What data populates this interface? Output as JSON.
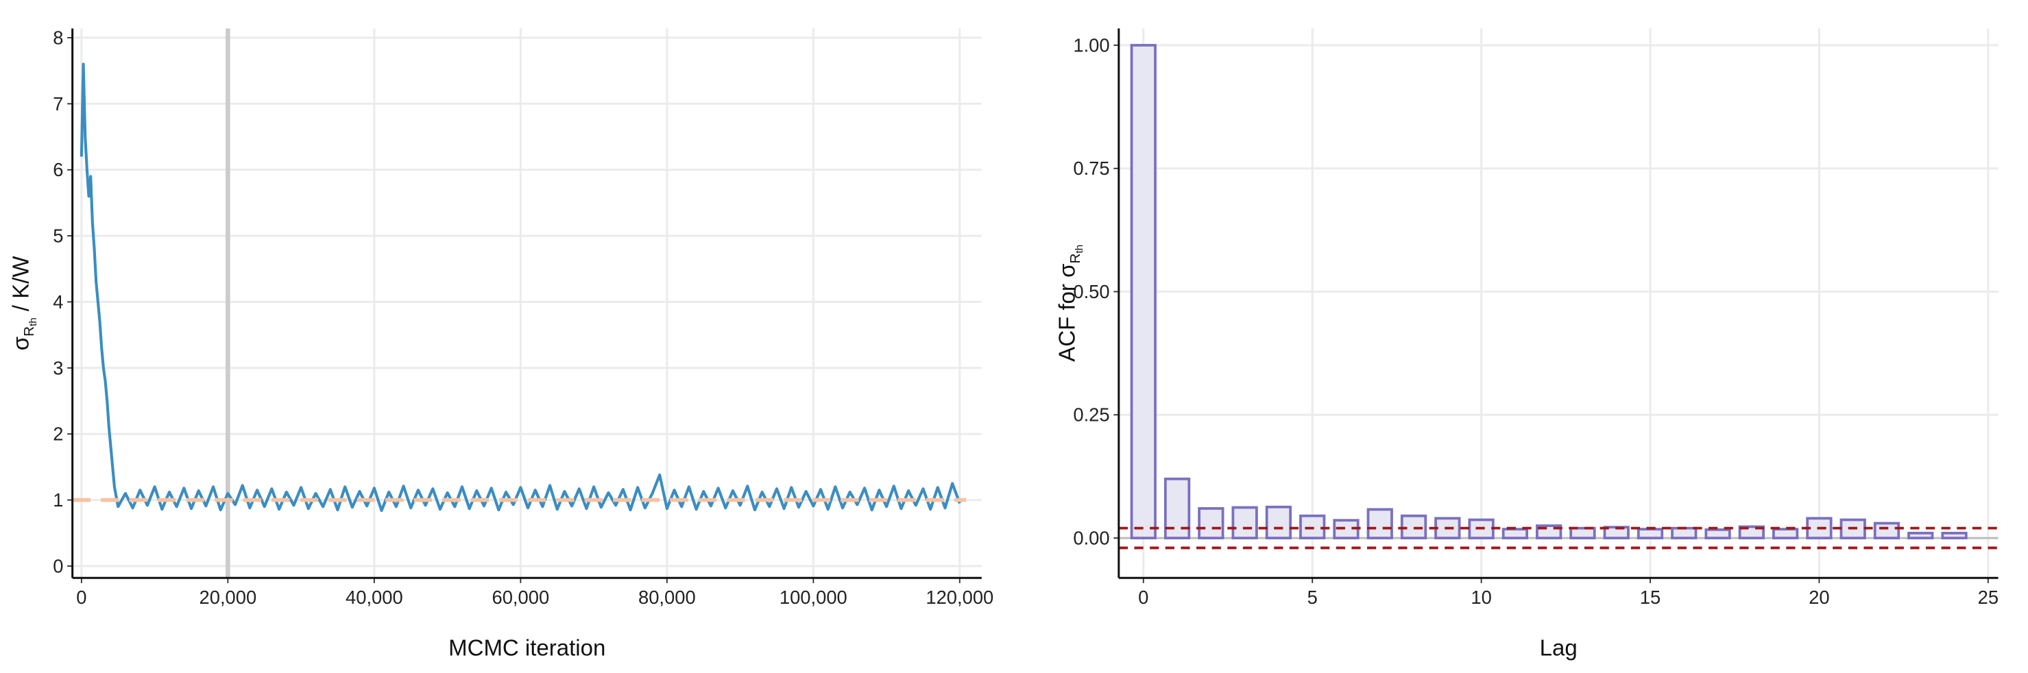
{
  "chart_data": [
    {
      "type": "line",
      "xlabel": "MCMC iteration",
      "ylabel": {
        "main": "σ",
        "sub": "R",
        "subsub": "th",
        "after": " / K/W"
      },
      "color": "#3a8dc2",
      "grid": true,
      "xlim": [
        -1240,
        123000
      ],
      "ylim": [
        -0.18,
        8.14
      ],
      "xticks": [
        0,
        {
          "value": 20000,
          "label": "20,000"
        },
        {
          "value": 40000,
          "label": "40,000"
        },
        {
          "value": 60000,
          "label": "60,000"
        },
        {
          "value": 80000,
          "label": "80,000"
        },
        {
          "value": 100000,
          "label": "100,000"
        },
        {
          "value": 120000,
          "label": "120,000"
        }
      ],
      "yticks": [
        0,
        1,
        2,
        3,
        4,
        5,
        6,
        7,
        8
      ],
      "vline": 20000,
      "vline_color": "#cccccc",
      "hline": 1,
      "hline_color": "#f6c3a3",
      "x": [
        0,
        250,
        500,
        750,
        1000,
        1250,
        1500,
        1750,
        2000,
        2250,
        2500,
        2750,
        3000,
        3250,
        3500,
        3750,
        4000,
        4250,
        4500,
        4750,
        5000,
        6000,
        7000,
        8000,
        9000,
        10000,
        11000,
        12000,
        13000,
        14000,
        15000,
        16000,
        17000,
        18000,
        19000,
        20000,
        21000,
        22000,
        23000,
        24000,
        25000,
        26000,
        27000,
        28000,
        29000,
        30000,
        31000,
        32000,
        33000,
        34000,
        35000,
        36000,
        37000,
        38000,
        39000,
        40000,
        41000,
        42000,
        43000,
        44000,
        45000,
        46000,
        47000,
        48000,
        49000,
        50000,
        51000,
        52000,
        53000,
        54000,
        55000,
        56000,
        57000,
        58000,
        59000,
        60000,
        61000,
        62000,
        63000,
        64000,
        65000,
        66000,
        67000,
        68000,
        69000,
        70000,
        71000,
        72000,
        73000,
        74000,
        75000,
        76000,
        77000,
        78000,
        79000,
        80000,
        81000,
        82000,
        83000,
        84000,
        85000,
        86000,
        87000,
        88000,
        89000,
        90000,
        91000,
        92000,
        93000,
        94000,
        95000,
        96000,
        97000,
        98000,
        99000,
        100000,
        101000,
        102000,
        103000,
        104000,
        105000,
        106000,
        107000,
        108000,
        109000,
        110000,
        111000,
        112000,
        113000,
        114000,
        115000,
        116000,
        117000,
        118000,
        119000,
        120000
      ],
      "values": [
        6.2,
        7.6,
        6.5,
        6.0,
        5.6,
        5.9,
        5.2,
        4.8,
        4.3,
        4.0,
        3.7,
        3.3,
        3.0,
        2.8,
        2.5,
        2.1,
        1.8,
        1.5,
        1.2,
        1.05,
        0.9,
        1.1,
        0.88,
        1.15,
        0.92,
        1.2,
        0.86,
        1.12,
        0.9,
        1.18,
        0.87,
        1.14,
        0.91,
        1.2,
        0.85,
        1.1,
        0.93,
        1.22,
        0.88,
        1.15,
        0.9,
        1.17,
        0.86,
        1.12,
        0.92,
        1.19,
        0.87,
        1.1,
        0.9,
        1.16,
        0.85,
        1.2,
        0.89,
        1.13,
        0.91,
        1.18,
        0.84,
        1.12,
        0.9,
        1.21,
        0.88,
        1.15,
        0.92,
        1.17,
        0.86,
        1.11,
        0.9,
        1.2,
        0.87,
        1.14,
        0.91,
        1.18,
        0.85,
        1.12,
        0.93,
        1.19,
        0.88,
        1.15,
        0.9,
        1.22,
        0.86,
        1.13,
        0.91,
        1.17,
        0.87,
        1.2,
        0.89,
        1.11,
        0.92,
        1.16,
        0.85,
        1.19,
        0.88,
        1.1,
        1.38,
        0.87,
        1.15,
        0.9,
        1.2,
        0.86,
        1.13,
        0.91,
        1.18,
        0.88,
        1.14,
        0.92,
        1.21,
        0.85,
        1.12,
        0.9,
        1.17,
        0.87,
        1.19,
        0.89,
        1.13,
        0.91,
        1.16,
        0.86,
        1.2,
        0.88,
        1.12,
        0.93,
        1.18,
        0.85,
        1.15,
        0.9,
        1.21,
        0.87,
        1.14,
        0.92,
        1.17,
        0.86,
        1.19,
        0.88,
        1.25,
        0.95
      ]
    },
    {
      "type": "bar",
      "xlabel": "Lag",
      "ylabel": {
        "main": "ACF for σ",
        "sub": "R",
        "subsub": "th"
      },
      "color": "#e7e6f3",
      "edge_color": "#7a70bf",
      "grid": true,
      "xlim": [
        -0.73,
        25.3
      ],
      "ylim": [
        -0.081,
        1.034
      ],
      "xticks": [
        0,
        5,
        10,
        15,
        20,
        25
      ],
      "yticks": [
        {
          "value": 0,
          "label": "0.00"
        },
        {
          "value": 0.25,
          "label": "0.25"
        },
        {
          "value": 0.5,
          "label": "0.50"
        },
        {
          "value": 0.75,
          "label": "0.75"
        },
        {
          "value": 1,
          "label": "1.00"
        }
      ],
      "x": [
        0,
        1,
        2,
        3,
        4,
        5,
        6,
        7,
        8,
        9,
        10,
        11,
        12,
        13,
        14,
        15,
        16,
        17,
        18,
        19,
        20,
        21,
        22,
        23,
        24
      ],
      "values": [
        1.0,
        0.12,
        0.06,
        0.062,
        0.063,
        0.045,
        0.036,
        0.058,
        0.045,
        0.04,
        0.037,
        0.018,
        0.025,
        0.02,
        0.022,
        0.018,
        0.02,
        0.017,
        0.023,
        0.018,
        0.04,
        0.037,
        0.03,
        0.01,
        0.01
      ],
      "hlines": [
        0.02,
        -0.02
      ],
      "hline_color": "#a01818"
    }
  ]
}
